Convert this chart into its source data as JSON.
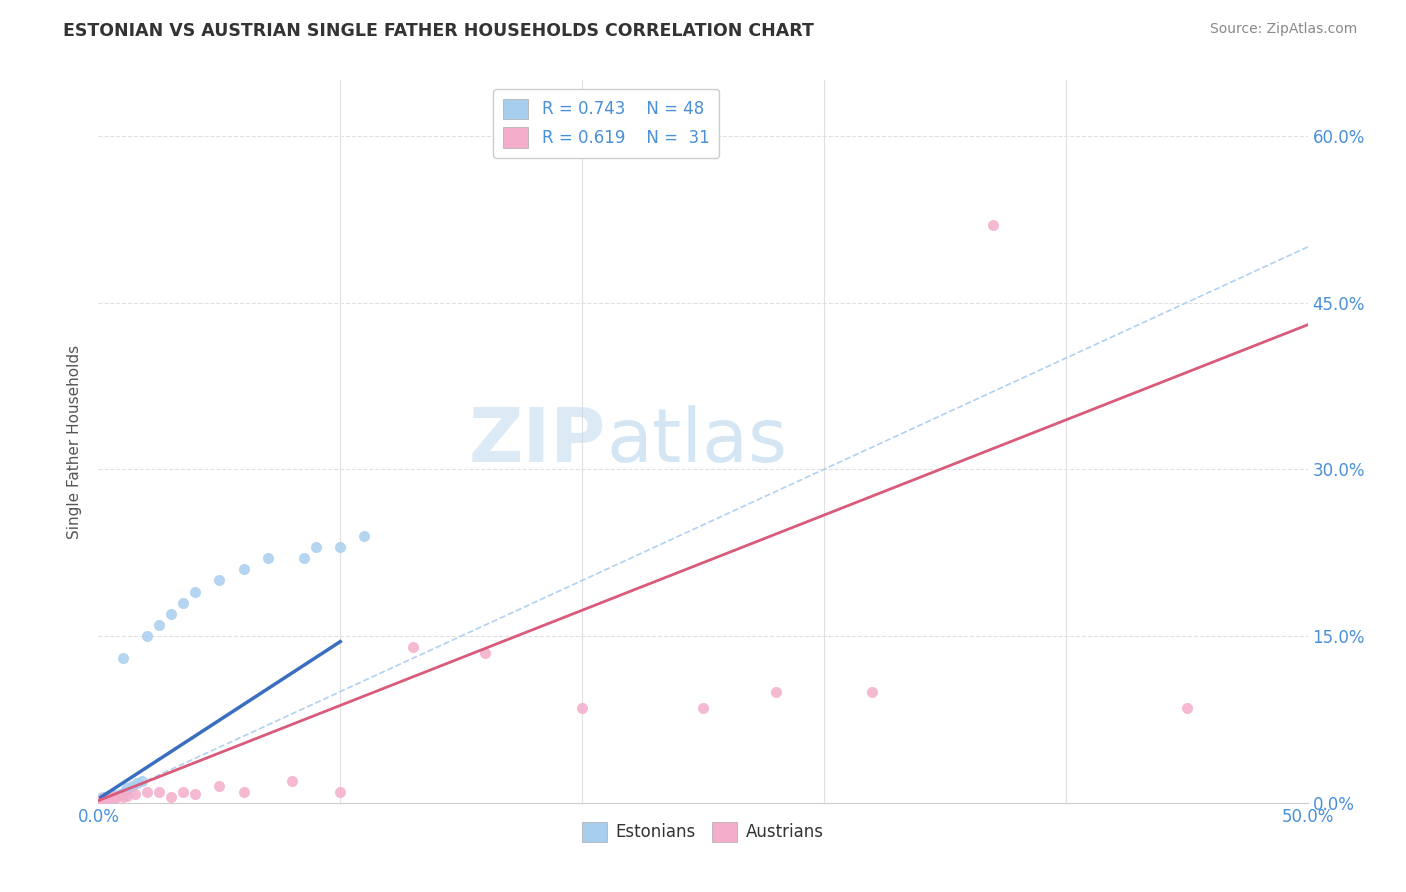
{
  "title": "ESTONIAN VS AUSTRIAN SINGLE FATHER HOUSEHOLDS CORRELATION CHART",
  "source_text": "Source: ZipAtlas.com",
  "ylabel": "Single Father Households",
  "xlim": [
    0.0,
    0.5
  ],
  "ylim": [
    0.0,
    0.65
  ],
  "watermark_zip": "ZIP",
  "watermark_atlas": "atlas",
  "estonian_color": "#A8CEEE",
  "austrian_color": "#F4AECB",
  "estonian_line_color": "#3A6EBF",
  "austrian_line_color": "#D95A7A",
  "ref_line_color": "#AACCEE",
  "legend_text_color": "#4A90D9",
  "title_color": "#333333",
  "background_color": "#FFFFFF",
  "grid_color": "#E0E0E0",
  "dot_size": 55,
  "estonian_x": [
    0.001,
    0.001,
    0.001,
    0.001,
    0.001,
    0.001,
    0.001,
    0.002,
    0.002,
    0.002,
    0.002,
    0.002,
    0.002,
    0.003,
    0.003,
    0.003,
    0.003,
    0.004,
    0.004,
    0.004,
    0.005,
    0.005,
    0.005,
    0.006,
    0.006,
    0.007,
    0.007,
    0.008,
    0.009,
    0.01,
    0.01,
    0.011,
    0.012,
    0.014,
    0.016,
    0.018,
    0.02,
    0.025,
    0.03,
    0.035,
    0.04,
    0.05,
    0.06,
    0.07,
    0.085,
    0.09,
    0.1,
    0.11
  ],
  "estonian_y": [
    0.001,
    0.001,
    0.002,
    0.002,
    0.003,
    0.003,
    0.004,
    0.001,
    0.002,
    0.003,
    0.003,
    0.004,
    0.005,
    0.002,
    0.003,
    0.004,
    0.005,
    0.003,
    0.004,
    0.006,
    0.003,
    0.004,
    0.006,
    0.004,
    0.006,
    0.005,
    0.007,
    0.007,
    0.008,
    0.009,
    0.13,
    0.011,
    0.013,
    0.015,
    0.018,
    0.02,
    0.15,
    0.16,
    0.17,
    0.18,
    0.19,
    0.2,
    0.21,
    0.22,
    0.22,
    0.23,
    0.23,
    0.24
  ],
  "austrian_x": [
    0.001,
    0.001,
    0.002,
    0.002,
    0.003,
    0.004,
    0.004,
    0.005,
    0.006,
    0.007,
    0.008,
    0.01,
    0.012,
    0.015,
    0.02,
    0.025,
    0.03,
    0.035,
    0.04,
    0.05,
    0.06,
    0.08,
    0.1,
    0.13,
    0.16,
    0.2,
    0.25,
    0.28,
    0.32,
    0.37,
    0.45
  ],
  "austrian_y": [
    0.001,
    0.002,
    0.002,
    0.004,
    0.003,
    0.005,
    0.004,
    0.006,
    0.005,
    0.004,
    0.006,
    0.005,
    0.006,
    0.008,
    0.01,
    0.01,
    0.005,
    0.01,
    0.008,
    0.015,
    0.01,
    0.02,
    0.01,
    0.14,
    0.135,
    0.085,
    0.085,
    0.1,
    0.1,
    0.52,
    0.085
  ]
}
